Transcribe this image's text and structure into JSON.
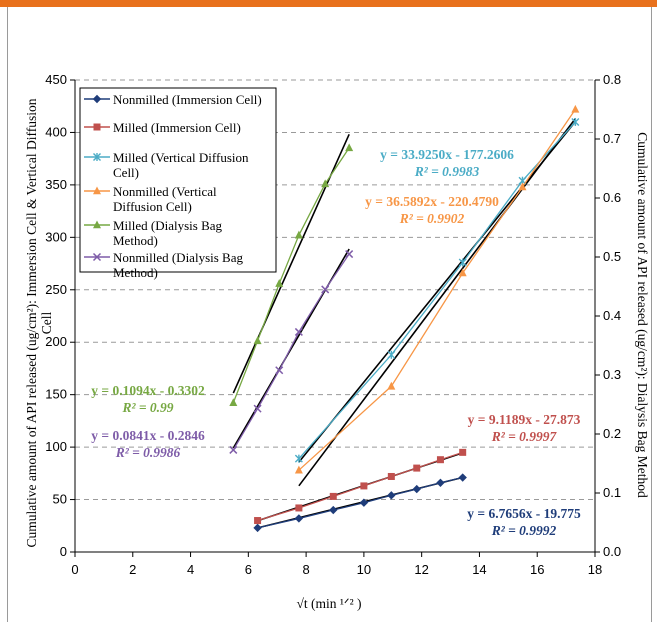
{
  "chart_data": {
    "type": "scatter",
    "xlabel": "√t (min ¹ᐟ² )",
    "ylabel_left_line1": "Cumulative amount of API released (ug/cm²): Immersion Cell & Vertical Diffusion",
    "ylabel_left_line2": "Cell",
    "ylabel_right": "Cumulative amount of API released (ug/cm²): Dialysis Bag Method",
    "xlim": [
      0,
      18
    ],
    "ylim_left": [
      0,
      450
    ],
    "ylim_right": [
      0,
      0.8
    ],
    "x_ticks": [
      "0",
      "2",
      "4",
      "6",
      "8",
      "10",
      "12",
      "14",
      "16",
      "18"
    ],
    "y_ticks_left": [
      "0",
      "50",
      "100",
      "150",
      "200",
      "250",
      "300",
      "350",
      "400",
      "450"
    ],
    "y_ticks_right": [
      "0.0",
      "0.1",
      "0.2",
      "0.3",
      "0.4",
      "0.5",
      "0.6",
      "0.7",
      "0.8"
    ],
    "grid": "horizontal dashed",
    "legend_position": "top-left",
    "series": [
      {
        "name": "Nonmilled (Immersion Cell)",
        "axis": "left",
        "marker": "diamond",
        "color": "#1f3d7a",
        "x": [
          6.32,
          7.75,
          8.94,
          10.0,
          10.95,
          11.83,
          12.65,
          13.42
        ],
        "y": [
          23,
          32,
          40,
          47,
          54,
          60,
          66,
          71
        ],
        "trendline": {
          "slope": 6.7656,
          "intercept": -19.775,
          "x_range": [
            6.32,
            13.42
          ]
        },
        "equation": "y = 6.7656x - 19.775",
        "r2": "R² = 0.9992"
      },
      {
        "name": "Milled (Immersion Cell)",
        "axis": "left",
        "marker": "square",
        "color": "#c0504d",
        "x": [
          6.32,
          7.75,
          8.94,
          10.0,
          10.95,
          11.83,
          12.65,
          13.42
        ],
        "y": [
          30,
          42,
          53,
          63,
          72,
          80,
          88,
          95
        ],
        "trendline": {
          "slope": 9.1189,
          "intercept": -27.873,
          "x_range": [
            6.32,
            13.42
          ]
        },
        "equation": "y = 9.1189x - 27.873",
        "r2": "R² = 0.9997"
      },
      {
        "name": "Milled (Vertical Diffusion Cell)",
        "axis": "left",
        "marker": "star",
        "color": "#4bacc6",
        "x": [
          7.75,
          10.95,
          13.42,
          15.49,
          17.32
        ],
        "y": [
          89,
          188,
          276,
          354,
          410
        ],
        "trendline": {
          "slope": 33.925,
          "intercept": -177.2606,
          "x_range": [
            7.75,
            17.32
          ]
        },
        "equation": "y = 33.9250x - 177.2606",
        "r2": "R² = 0.9983"
      },
      {
        "name": "Nonmilled (Vertical Diffusion Cell)",
        "axis": "left",
        "marker": "triangle",
        "color": "#f79646",
        "x": [
          7.75,
          10.95,
          13.42,
          15.49,
          17.32
        ],
        "y": [
          78,
          158,
          266,
          348,
          422
        ],
        "trendline": {
          "slope": 36.5892,
          "intercept": -220.479,
          "x_range": [
            7.75,
            17.32
          ]
        },
        "equation": "y = 36.5892x - 220.4790",
        "r2": "R² = 0.9902"
      },
      {
        "name": "Milled (Dialysis Bag Method)",
        "axis": "right",
        "marker": "triangle",
        "color": "#77a843",
        "x": [
          5.48,
          6.32,
          7.07,
          7.75,
          8.66,
          9.49
        ],
        "y": [
          0.253,
          0.358,
          0.455,
          0.537,
          0.624,
          0.685
        ],
        "trendline": {
          "slope": 0.1094,
          "intercept": -0.3302,
          "x_range": [
            5.48,
            9.49
          ]
        },
        "equation": "y = 0.1094x - 0.3302",
        "r2": "R² = 0.99"
      },
      {
        "name": "Nonmilled (Dialysis Bag Method)",
        "axis": "right",
        "marker": "x",
        "color": "#7e5ca8",
        "x": [
          5.48,
          6.32,
          7.07,
          7.75,
          8.66,
          9.49
        ],
        "y": [
          0.173,
          0.243,
          0.308,
          0.373,
          0.445,
          0.505
        ],
        "trendline": {
          "slope": 0.0841,
          "intercept": -0.2846,
          "x_range": [
            5.48,
            9.49
          ]
        },
        "equation": "y = 0.0841x - 0.2846",
        "r2": "R² = 0.9986"
      }
    ]
  }
}
